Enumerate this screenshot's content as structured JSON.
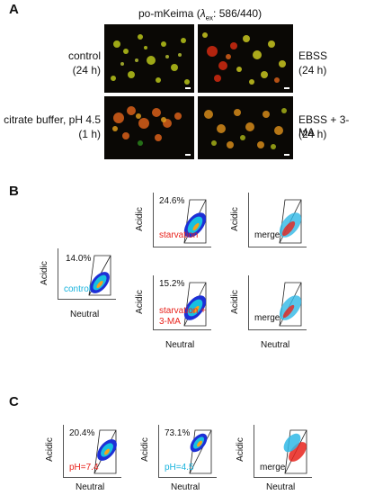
{
  "panelA": {
    "letter": "A",
    "title_prefix": "po-mKeima (",
    "title_lambda": "λ",
    "title_sub": "ex",
    "title_suffix": ": 586/440)",
    "labels": {
      "control": "control",
      "control_time": "(24 h)",
      "ebss": "EBSS",
      "ebss_time": "(24 h)",
      "citrate": "citrate buffer, pH 4.5",
      "citrate_time": "(1 h)",
      "ebss3ma": "EBSS + 3-MA",
      "ebss3ma_time": "(24 h)"
    }
  },
  "panelB": {
    "letter": "B",
    "y_label": "Acidic",
    "x_label": "Neutral",
    "control_pct": "14.0%",
    "control_tag": "control",
    "starv_pct": "24.6%",
    "starv_tag": "starvation",
    "starv3ma_pct": "15.2%",
    "starv3ma_tag1": "starvation +",
    "starv3ma_tag2": "3-MA",
    "merge": "merge"
  },
  "panelC": {
    "letter": "C",
    "y_label": "Acidic",
    "x_label": "Neutral",
    "ph74_pct": "20.4%",
    "ph74_tag": "pH=7.4",
    "ph45_pct": "73.1%",
    "ph45_tag": "pH=4.5",
    "merge": "merge"
  },
  "colors": {
    "red_label": "#e8231c",
    "cyan_label": "#17b3dd",
    "density_high": "#1d2fd6",
    "density_mid": "#18c0e0",
    "density_core": "#f6a21a"
  }
}
